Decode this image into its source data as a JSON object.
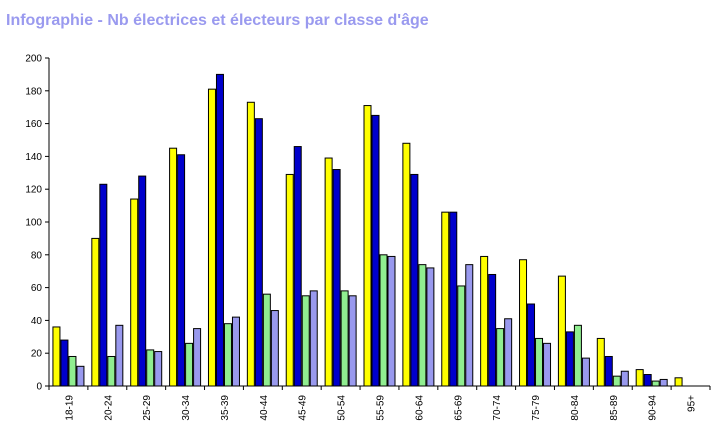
{
  "page_title": "Infographie - Nb électrices et électeurs par classe d'âge",
  "chart_data": {
    "type": "bar",
    "title": "Infographie - Nb électrices et électeurs par classe d'âge",
    "xlabel": "",
    "ylabel": "",
    "ylim": [
      0,
      200
    ],
    "yticks": [
      0,
      20,
      40,
      60,
      80,
      100,
      120,
      140,
      160,
      180,
      200
    ],
    "grid": false,
    "legend": "none",
    "categories": [
      "18-19",
      "20-24",
      "25-29",
      "30-34",
      "35-39",
      "40-44",
      "45-49",
      "50-54",
      "55-59",
      "60-64",
      "65-69",
      "70-74",
      "75-79",
      "80-84",
      "85-89",
      "90-94",
      "95+"
    ],
    "series": [
      {
        "color": "#ffff00",
        "values": [
          36,
          90,
          114,
          145,
          181,
          173,
          129,
          139,
          171,
          148,
          106,
          79,
          77,
          67,
          29,
          10,
          5
        ]
      },
      {
        "color": "#0000cc",
        "values": [
          28,
          123,
          128,
          141,
          190,
          163,
          146,
          132,
          165,
          129,
          106,
          68,
          50,
          33,
          18,
          7,
          0
        ]
      },
      {
        "color": "#90ee90",
        "values": [
          18,
          18,
          22,
          26,
          38,
          56,
          55,
          58,
          80,
          74,
          61,
          35,
          29,
          37,
          6,
          3,
          0
        ]
      },
      {
        "color": "#9999ee",
        "values": [
          12,
          37,
          21,
          35,
          42,
          46,
          58,
          55,
          79,
          72,
          74,
          41,
          26,
          17,
          9,
          4,
          0
        ]
      }
    ]
  }
}
